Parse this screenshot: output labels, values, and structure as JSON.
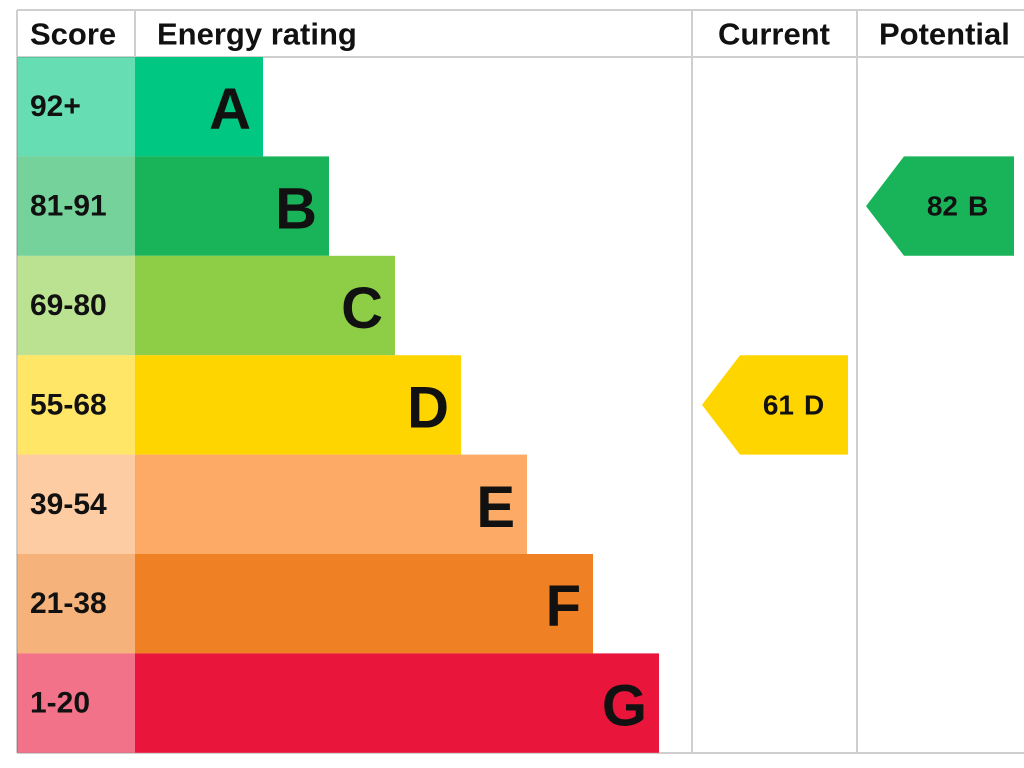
{
  "header": {
    "score": "Score",
    "rating": "Energy rating",
    "current": "Current",
    "potential": "Potential"
  },
  "bands": [
    {
      "score": "92+",
      "letter": "A",
      "color": "#00c781"
    },
    {
      "score": "81-91",
      "letter": "B",
      "color": "#19b459"
    },
    {
      "score": "69-80",
      "letter": "C",
      "color": "#8dce46"
    },
    {
      "score": "55-68",
      "letter": "D",
      "color": "#ffd500"
    },
    {
      "score": "39-54",
      "letter": "E",
      "color": "#fcaa65"
    },
    {
      "score": "21-38",
      "letter": "F",
      "color": "#ef8023"
    },
    {
      "score": "1-20",
      "letter": "G",
      "color": "#e9153b"
    }
  ],
  "current": {
    "value": 61,
    "letter": "D"
  },
  "potential": {
    "value": 82,
    "letter": "B"
  }
}
